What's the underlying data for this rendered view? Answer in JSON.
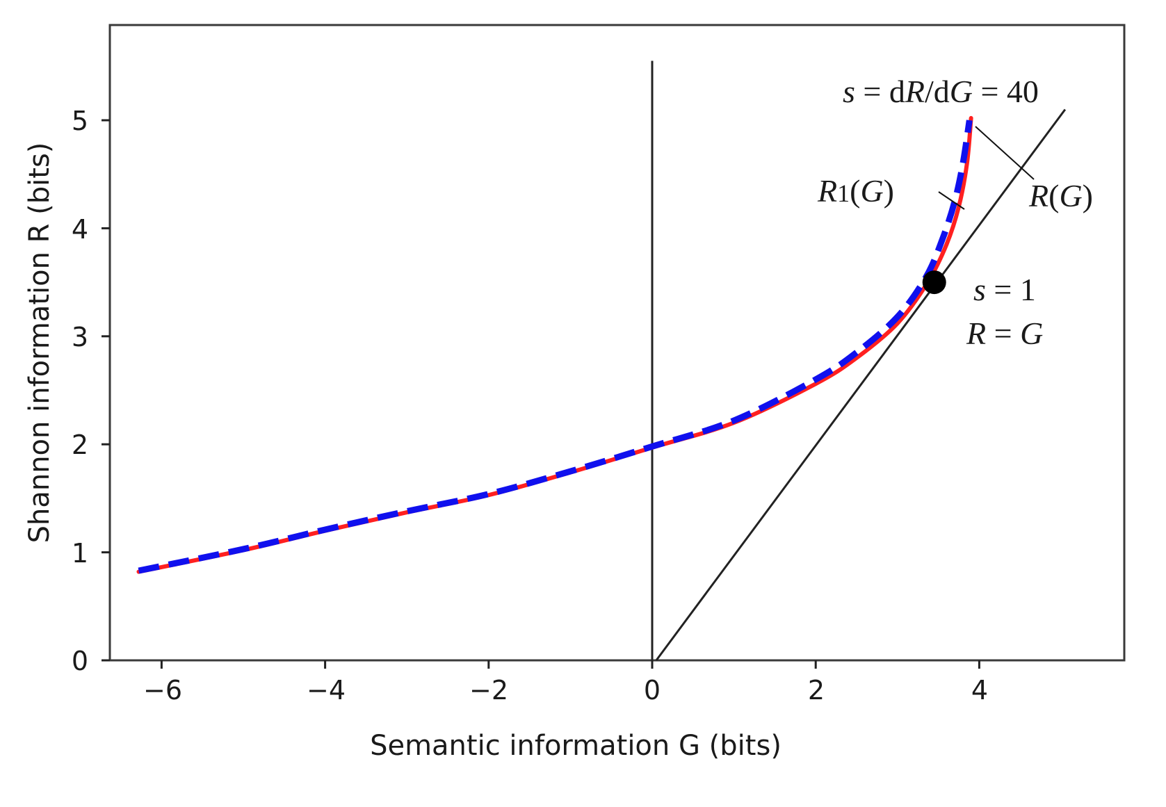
{
  "chart_data": {
    "type": "line",
    "title": "",
    "xlabel": "Semantic information G (bits)",
    "ylabel": "Shannon information R (bits)",
    "xlim": [
      -6.6,
      5.8
    ],
    "ylim": [
      0,
      5.85
    ],
    "grid": false,
    "legend": null,
    "x_ticks": [
      -6,
      -4,
      -2,
      0,
      2,
      4
    ],
    "x_tick_labels": [
      "−6",
      "−4",
      "−2",
      "0",
      "2",
      "4"
    ],
    "y_ticks": [
      0,
      1,
      2,
      3,
      4,
      5
    ],
    "y_tick_labels": [
      "0",
      "1",
      "2",
      "3",
      "4",
      "5"
    ],
    "series": [
      {
        "name": "R(G)",
        "style": "solid",
        "color": "#ff2020",
        "x": [
          -6.28,
          -5,
          -4,
          -3,
          -2,
          -1,
          0,
          1,
          2,
          2.5,
          3,
          3.37,
          3.6,
          3.75,
          3.85,
          3.9
        ],
        "y": [
          0.82,
          1.02,
          1.2,
          1.37,
          1.53,
          1.74,
          1.97,
          2.2,
          2.56,
          2.8,
          3.12,
          3.5,
          3.85,
          4.2,
          4.6,
          5.02
        ]
      },
      {
        "name": "R1(G)",
        "style": "dashed",
        "color": "#1010ee",
        "x": [
          -6.28,
          -5,
          -4,
          -3,
          -2,
          -1,
          0,
          1,
          2,
          2.5,
          3,
          3.35,
          3.55,
          3.7,
          3.8,
          3.88
        ],
        "y": [
          0.83,
          1.03,
          1.21,
          1.38,
          1.54,
          1.75,
          1.98,
          2.22,
          2.6,
          2.85,
          3.18,
          3.55,
          3.9,
          4.25,
          4.6,
          5.0
        ]
      },
      {
        "name": "R = G line",
        "style": "solid",
        "color": "#222222",
        "x": [
          0.05,
          5.05
        ],
        "y": [
          0,
          5.1
        ]
      },
      {
        "name": "G = 0 vertical line",
        "style": "solid",
        "color": "#222222",
        "x": [
          0,
          0
        ],
        "y": [
          0,
          5.55
        ]
      }
    ],
    "points": [
      {
        "name": "tangent point s=1",
        "x": 3.45,
        "y": 3.5,
        "color": "#000000"
      }
    ],
    "annotations": [
      {
        "text": "s = dR/dG = 40",
        "x": 3.8,
        "y": 5.25
      },
      {
        "text": "R1(G)",
        "x": 2.85,
        "y": 4.3
      },
      {
        "text": "R(G)",
        "x": 4.6,
        "y": 4.3
      },
      {
        "text": "s = 1",
        "x": 4.05,
        "y": 3.35
      },
      {
        "text": "R = G",
        "x": 3.95,
        "y": 2.95
      }
    ]
  },
  "labels": {
    "xlabel": "Semantic information G (bits)",
    "ylabel": "Shannon information R (bits)",
    "x_ticks": [
      "−6",
      "−4",
      "−2",
      "0",
      "2",
      "4"
    ],
    "y_ticks": [
      "0",
      "1",
      "2",
      "3",
      "4",
      "5"
    ],
    "annot_slope40_s": "s",
    "annot_slope40_eq1": " = d",
    "annot_slope40_R": "R",
    "annot_slope40_slash": "/d",
    "annot_slope40_G": "G",
    "annot_slope40_val": " = 40",
    "annot_r1_R": "R",
    "annot_r1_sub": "1",
    "annot_r1_paren_open": "(",
    "annot_r1_G": "G",
    "annot_r1_paren_close": ")",
    "annot_r_R": "R",
    "annot_r_open": "(",
    "annot_r_G": "G",
    "annot_r_close": ")",
    "annot_s1_s": "s",
    "annot_s1_rest": " = 1",
    "annot_rg_R": "R",
    "annot_rg_eq": " = ",
    "annot_rg_G": "G"
  },
  "colors": {
    "r_curve": "#ff2020",
    "r1_curve": "#1010ee",
    "lines": "#222222",
    "frame": "#3a3a3a",
    "point": "#000000"
  }
}
